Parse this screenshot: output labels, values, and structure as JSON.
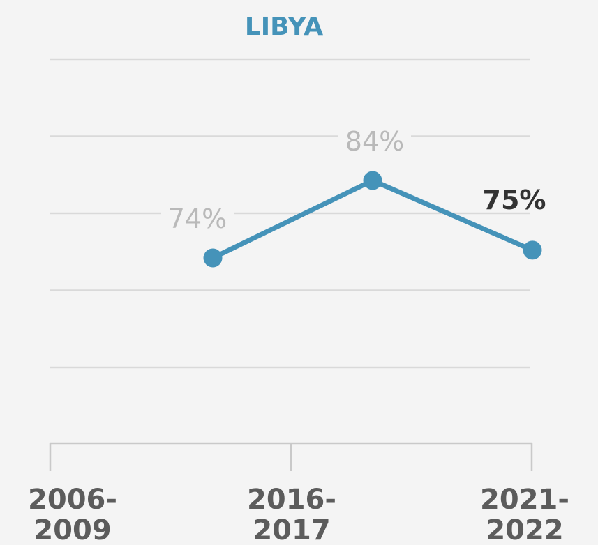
{
  "chart_data": {
    "type": "line",
    "title": "LIBYA",
    "x_ticks": [
      [
        "2006-",
        "2009"
      ],
      [
        "2016-",
        "2017"
      ],
      [
        "2021-",
        "2022"
      ]
    ],
    "series": [
      {
        "points": [
          {
            "label": "74%",
            "value": 74
          },
          {
            "label": "84%",
            "value": 84
          },
          {
            "label": "75%",
            "value": 75
          }
        ]
      }
    ],
    "grid": true,
    "grid_lines": 5,
    "colors": {
      "accent": "#4593b9",
      "line": "#4593b9",
      "muted_label": "#b9b9b9",
      "final_label": "#333333",
      "tick_label": "#5c5c5c"
    }
  }
}
